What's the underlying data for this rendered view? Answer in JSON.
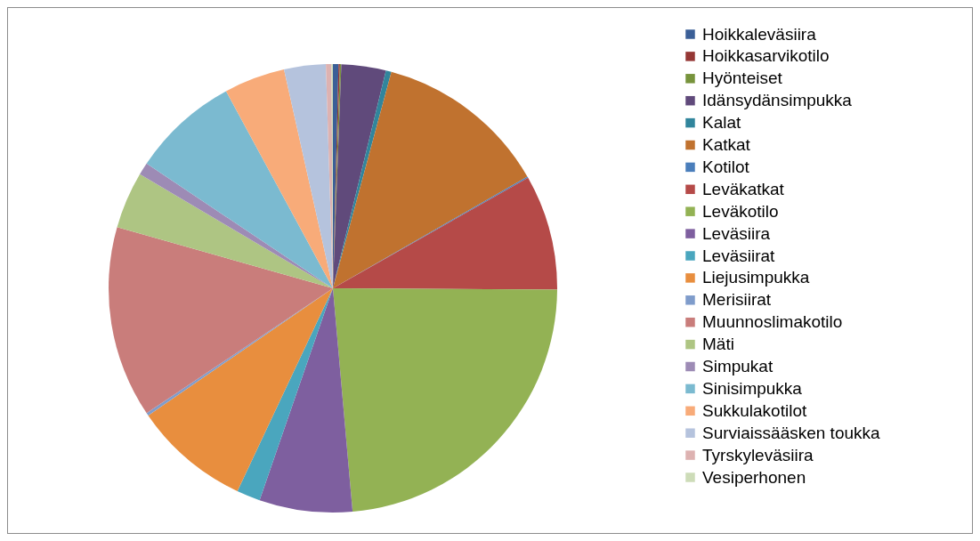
{
  "chart_data": {
    "type": "pie",
    "legend": "right",
    "categories": [
      "Hoikkaleväsiira",
      "Hoikkasarvikotilo",
      "Hyönteiset",
      "Idänsydänsimpukka",
      "Kalat",
      "Katkat",
      "Kotilot",
      "Leväkatkat",
      "Leväkotilo",
      "Leväsiira",
      "Leväsiirat",
      "Liejusimpukka",
      "Merisiirat",
      "Muunnoslimakotilo",
      "Mäti",
      "Simpukat",
      "Sinisimpukka",
      "Sukkulakotilot",
      "Surviaissääsken toukka",
      "Tyrskyleväsiira",
      "Vesiperhonen"
    ],
    "values": [
      0.4,
      0.1,
      0.1,
      3.2,
      0.4,
      12.5,
      0.1,
      8.3,
      23.5,
      6.7,
      1.7,
      8.4,
      0.2,
      13.8,
      4.1,
      0.9,
      7.7,
      4.4,
      3.0,
      0.4,
      0.1
    ],
    "colors": [
      "#3b5f97",
      "#953735",
      "#77933c",
      "#604a7b",
      "#31859c",
      "#c0722f",
      "#4a7ebb",
      "#b54a48",
      "#93b254",
      "#7e5f9f",
      "#4aa6be",
      "#e88e3e",
      "#7f9ccb",
      "#c97d7b",
      "#aec583",
      "#9d8bb5",
      "#7bbad0",
      "#f8ab79",
      "#b5c3dd",
      "#ddb2b1",
      "#cddcb8"
    ]
  }
}
